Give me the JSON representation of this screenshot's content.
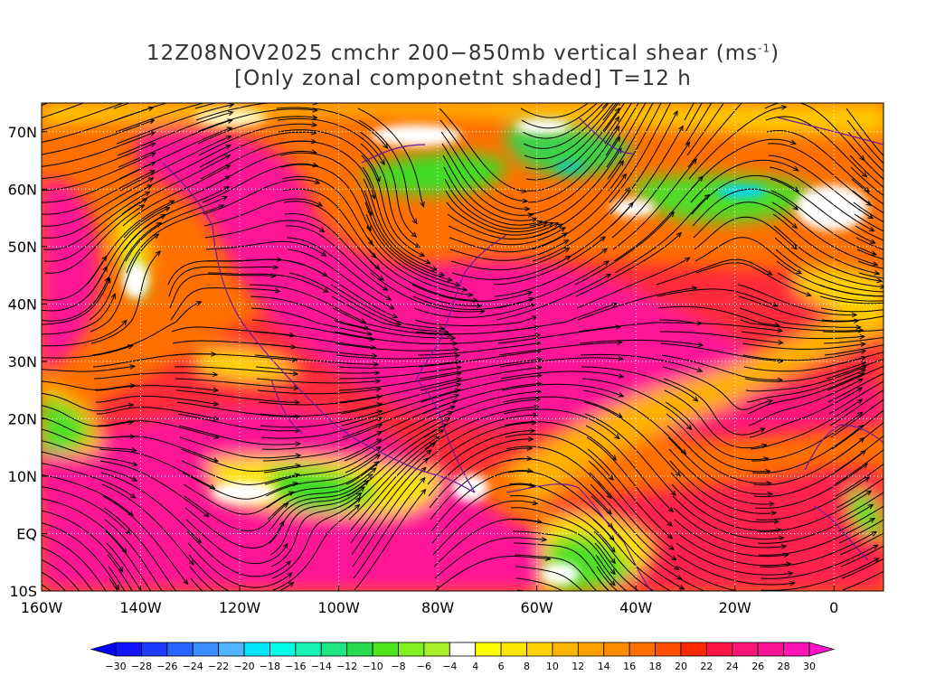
{
  "title": {
    "line1_prefix": "12Z08NOV2025 cmchr 200−850mb vertical shear (ms",
    "line1_sup": "-1",
    "line1_suffix": ")",
    "line2": "[Only zonal componetnt shaded] T=12 h"
  },
  "map": {
    "lon_range": [
      -160,
      10
    ],
    "lat_range": [
      -10,
      75
    ],
    "lat_ticks": [
      {
        "value": 70,
        "label": "70N"
      },
      {
        "value": 60,
        "label": "60N"
      },
      {
        "value": 50,
        "label": "50N"
      },
      {
        "value": 40,
        "label": "40N"
      },
      {
        "value": 30,
        "label": "30N"
      },
      {
        "value": 20,
        "label": "20N"
      },
      {
        "value": 10,
        "label": "10N"
      },
      {
        "value": 0,
        "label": "EQ"
      },
      {
        "value": -10,
        "label": "10S"
      }
    ],
    "lon_ticks": [
      {
        "value": -160,
        "label": "160W"
      },
      {
        "value": -140,
        "label": "140W"
      },
      {
        "value": -120,
        "label": "120W"
      },
      {
        "value": -100,
        "label": "100W"
      },
      {
        "value": -80,
        "label": "80W"
      },
      {
        "value": -60,
        "label": "60W"
      },
      {
        "value": -40,
        "label": "40W"
      },
      {
        "value": -20,
        "label": "20W"
      },
      {
        "value": 0,
        "label": "0"
      }
    ]
  },
  "colorbar": {
    "labels": [
      "-30",
      "-28",
      "-26",
      "-24",
      "-22",
      "-20",
      "-18",
      "-16",
      "-14",
      "-12",
      "-10",
      "-8",
      "-6",
      "-4",
      "4",
      "6",
      "8",
      "10",
      "12",
      "14",
      "16",
      "18",
      "20",
      "22",
      "24",
      "26",
      "28",
      "30"
    ],
    "colors": [
      "#1414ff",
      "#1e3cff",
      "#2864ff",
      "#3c8cff",
      "#50b4ff",
      "#00e6ff",
      "#00ffe6",
      "#14f5b4",
      "#1ee682",
      "#28dc50",
      "#50e61e",
      "#82f01e",
      "#aaf028",
      "#ffffff",
      "#ffff00",
      "#ffe600",
      "#ffd200",
      "#ffb400",
      "#ffa000",
      "#ff8c00",
      "#ff6e00",
      "#ff5000",
      "#ff2800",
      "#ff1446",
      "#ff1478",
      "#ff1496",
      "#ff14b4"
    ],
    "left_arrow_color": "#0000ff",
    "right_arrow_color": "#ff14c8"
  },
  "field": {
    "regions": [
      {
        "name": "bg-orange",
        "color": "#ff7800"
      },
      {
        "name": "jet-magenta",
        "color": "#ff1496"
      },
      {
        "name": "red-band",
        "color": "#ff2040"
      },
      {
        "name": "yellow-band",
        "color": "#ffd200"
      },
      {
        "name": "green-area",
        "color": "#3cdc3c"
      },
      {
        "name": "cyan-spot",
        "color": "#00dcff"
      }
    ]
  }
}
